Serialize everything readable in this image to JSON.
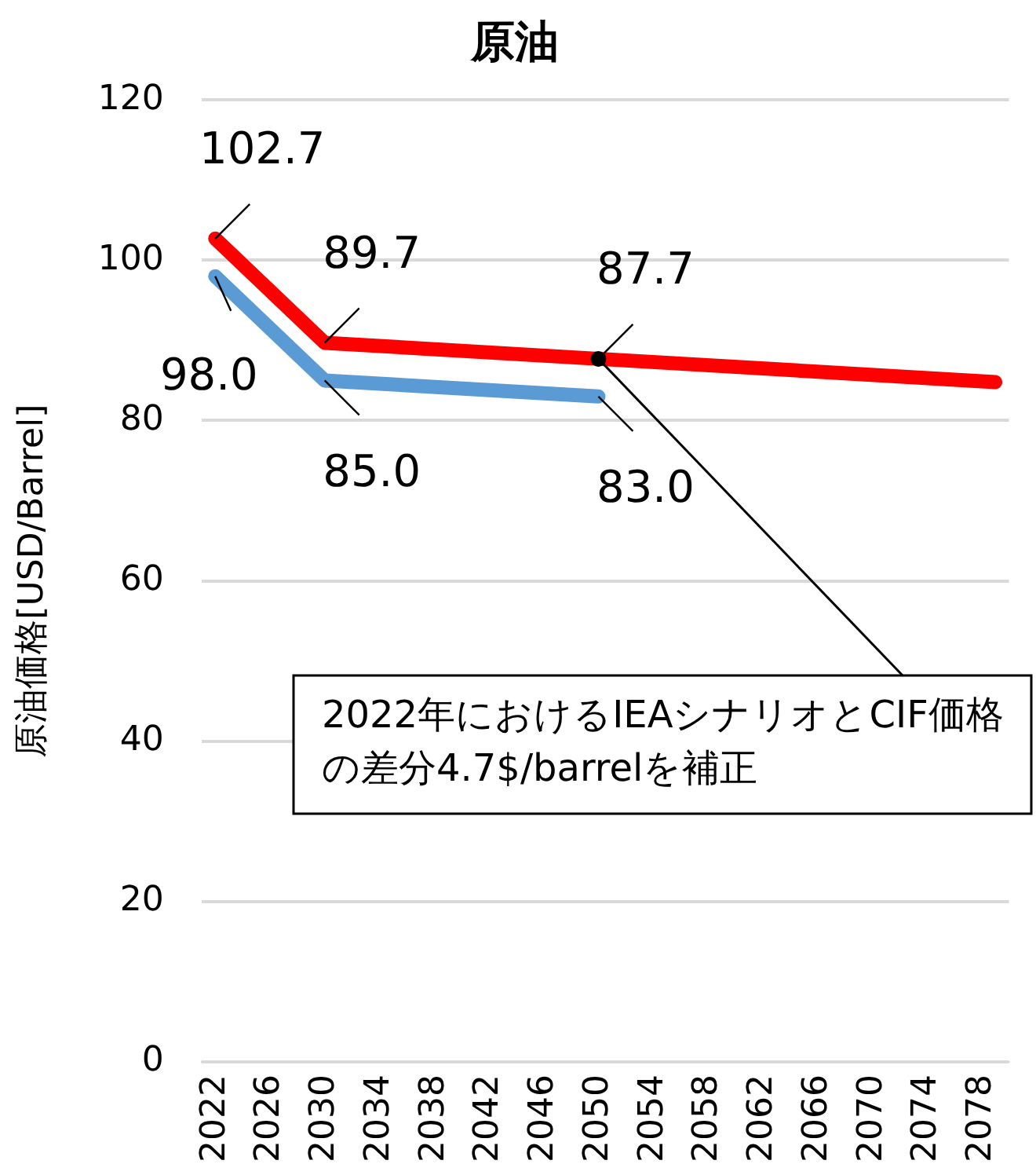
{
  "chart_data": {
    "type": "line",
    "title": "原油",
    "ylabel": "原油価格[USD/Barrel]",
    "xlim": [
      2021,
      2080
    ],
    "xticks": [
      2022,
      2026,
      2030,
      2034,
      2038,
      2042,
      2046,
      2050,
      2054,
      2058,
      2062,
      2066,
      2070,
      2074,
      2078
    ],
    "ylim": [
      0,
      120
    ],
    "yticks": [
      0,
      20,
      40,
      60,
      80,
      100,
      120
    ],
    "grid": "y",
    "legend": false,
    "marker": "none",
    "line_style": "solid",
    "series": [
      {
        "color": "#ff0000",
        "x": [
          2022,
          2030,
          2050,
          2079
        ],
        "values": [
          102.7,
          89.7,
          87.7,
          84.8
        ],
        "value_labels": [
          "102.7",
          "89.7",
          "87.7",
          null
        ]
      },
      {
        "color": "#5b9bd5",
        "x": [
          2022,
          2030,
          2050
        ],
        "values": [
          98.0,
          85.0,
          83.0
        ],
        "value_labels": [
          "98.0",
          "85.0",
          "83.0"
        ]
      }
    ],
    "annotations": [
      {
        "text": "2022年におけるIEAシナリオとCIF価格の差分4.7$/barrelを補正",
        "x": 2050,
        "y": 87.7
      }
    ]
  }
}
